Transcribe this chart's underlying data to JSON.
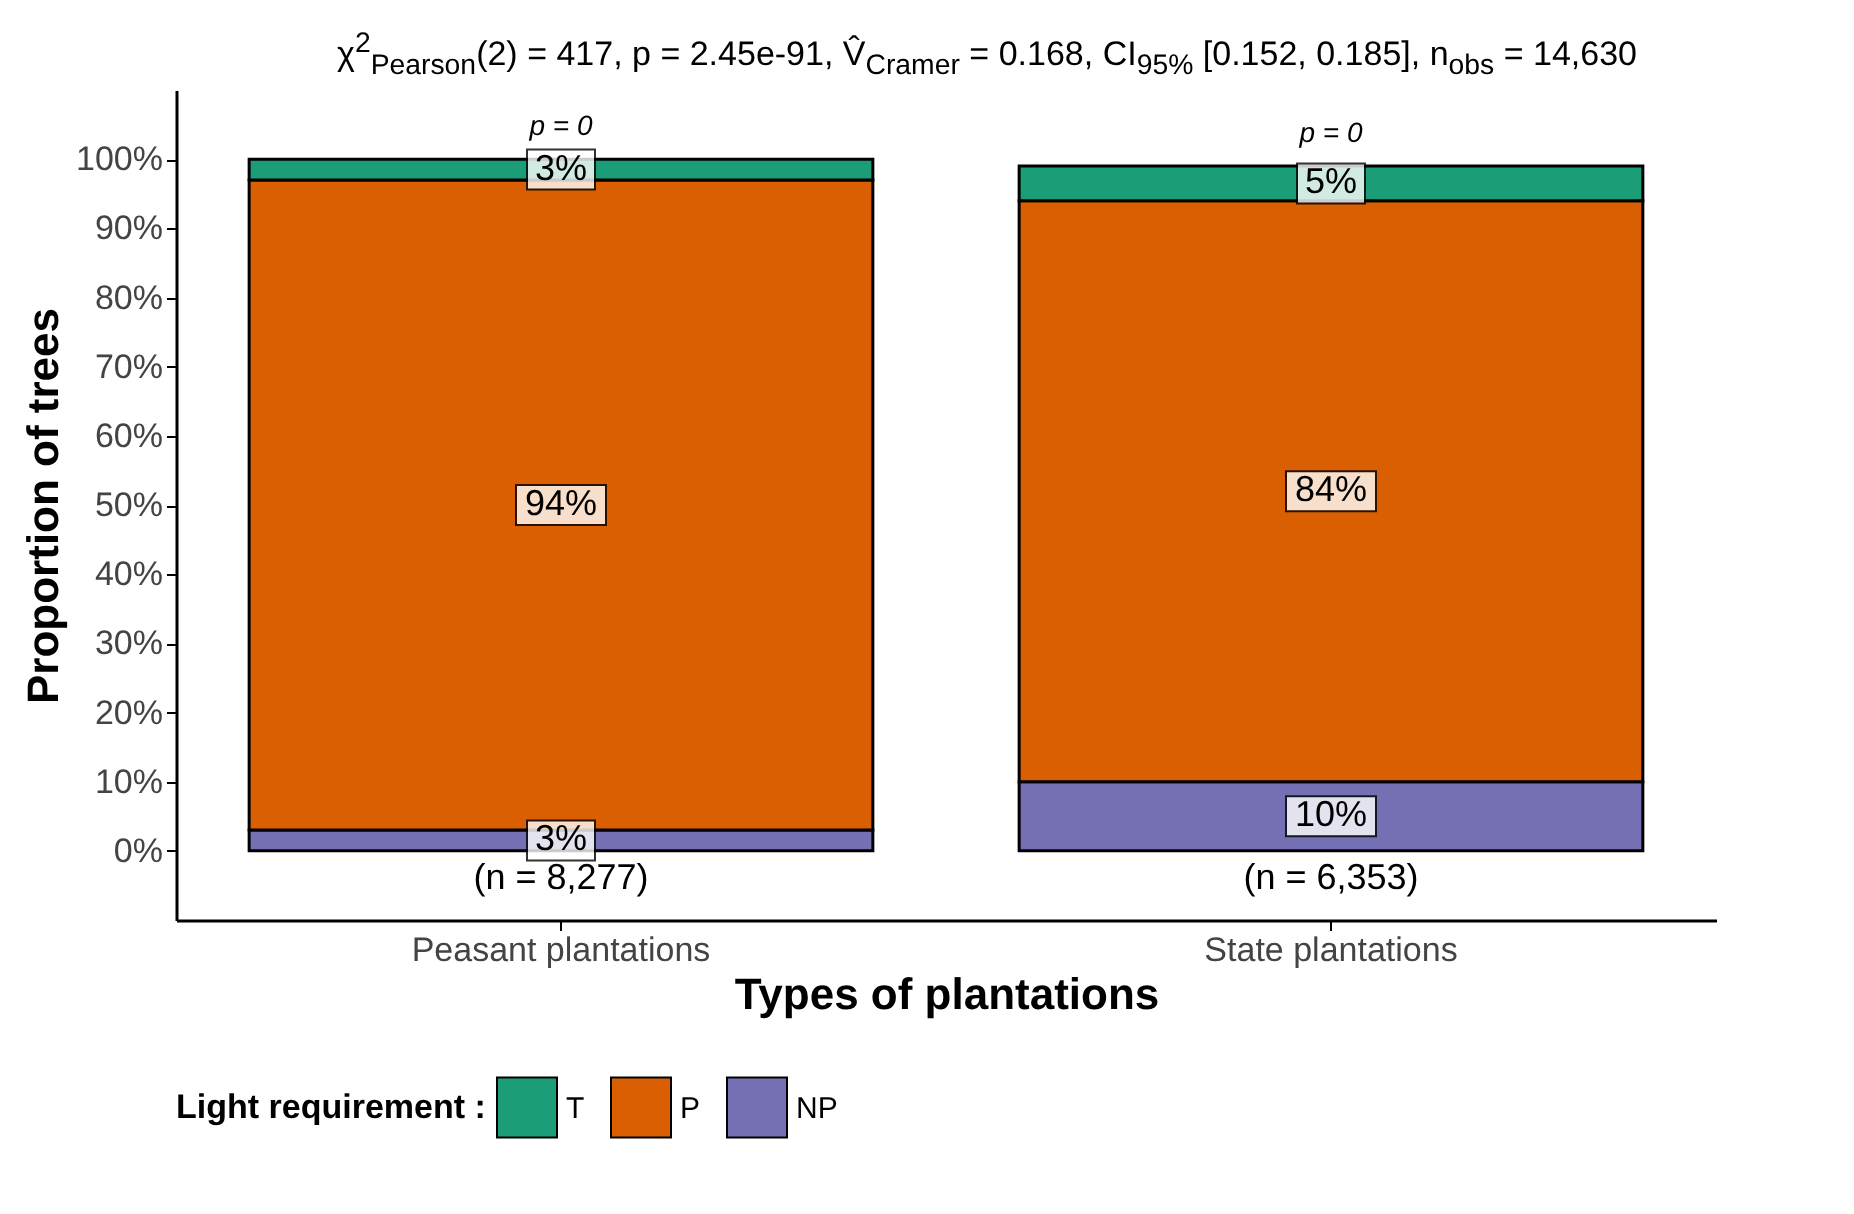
{
  "chart_data": {
    "type": "bar",
    "stacked": true,
    "title": "χ$^{2}$$_{Pearson}$(2) = 417, p = 2.45e-91, V̂$_{Cramer}$ = 0.168, CI$_{95%}$ [0.152, 0.185], n$_{obs}$ = 14,630",
    "xlabel": "Types of plantations",
    "ylabel": "Proportion of trees",
    "legend_title": "Light requirement :",
    "categories": [
      "Peasant plantations",
      "State plantations"
    ],
    "series": [
      {
        "name": "NP",
        "color": "#7570b3",
        "values": [
          3,
          10
        ],
        "value_labels": [
          "3%",
          "10%"
        ]
      },
      {
        "name": "P",
        "color": "#d95f02",
        "values": [
          94,
          84
        ],
        "value_labels": [
          "94%",
          "84%"
        ]
      },
      {
        "name": "T",
        "color": "#1b9e77",
        "values": [
          3,
          5
        ],
        "value_labels": [
          "3%",
          "5%"
        ]
      }
    ],
    "ylim": [
      -10,
      110
    ],
    "yticks": [
      {
        "value": 0,
        "label": "0%"
      },
      {
        "value": 10,
        "label": "10%"
      },
      {
        "value": 20,
        "label": "20%"
      },
      {
        "value": 30,
        "label": "30%"
      },
      {
        "value": 40,
        "label": "40%"
      },
      {
        "value": 50,
        "label": "50%"
      },
      {
        "value": 60,
        "label": "60%"
      },
      {
        "value": 70,
        "label": "70%"
      },
      {
        "value": 80,
        "label": "80%"
      },
      {
        "value": 90,
        "label": "90%"
      },
      {
        "value": 100,
        "label": "100%"
      }
    ],
    "annotations": [
      "p = 0",
      "p = 0",
      "(n = 8,277)",
      "(n = 6,353)"
    ],
    "grid": false,
    "legend": "bottom"
  }
}
